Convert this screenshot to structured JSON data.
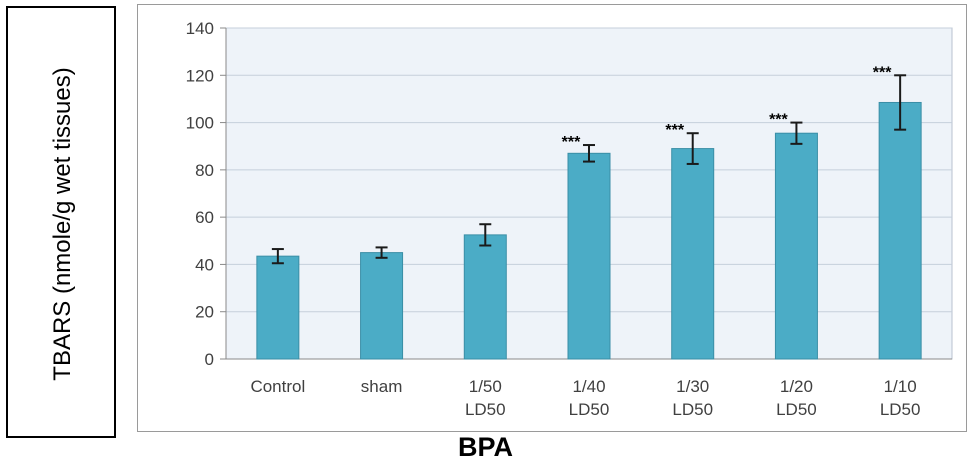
{
  "chart_data": {
    "type": "bar",
    "xlabel": "BPA",
    "ylabel": "TBARS (nmole/g wet tissues)",
    "ylim": [
      0,
      140
    ],
    "yticks": [
      0,
      20,
      40,
      60,
      80,
      100,
      120,
      140
    ],
    "grid": true,
    "categories": [
      [
        "Control"
      ],
      [
        "sham"
      ],
      [
        "1/50",
        "LD50"
      ],
      [
        "1/40",
        "LD50"
      ],
      [
        "1/30",
        "LD50"
      ],
      [
        "1/20",
        "LD50"
      ],
      [
        "1/10",
        "LD50"
      ]
    ],
    "values": [
      43.5,
      45,
      52.5,
      87,
      89,
      95.5,
      108.5
    ],
    "error": [
      3,
      2.2,
      4.5,
      3.5,
      6.5,
      4.5,
      11.5
    ],
    "significance": [
      "",
      "",
      "",
      "***",
      "***",
      "***",
      "***"
    ],
    "colors": {
      "bar": "#4bacc6",
      "bar_edge": "#3a8ea6",
      "plot_bg": "#eef3f9",
      "grid": "#c5cfdb"
    }
  }
}
